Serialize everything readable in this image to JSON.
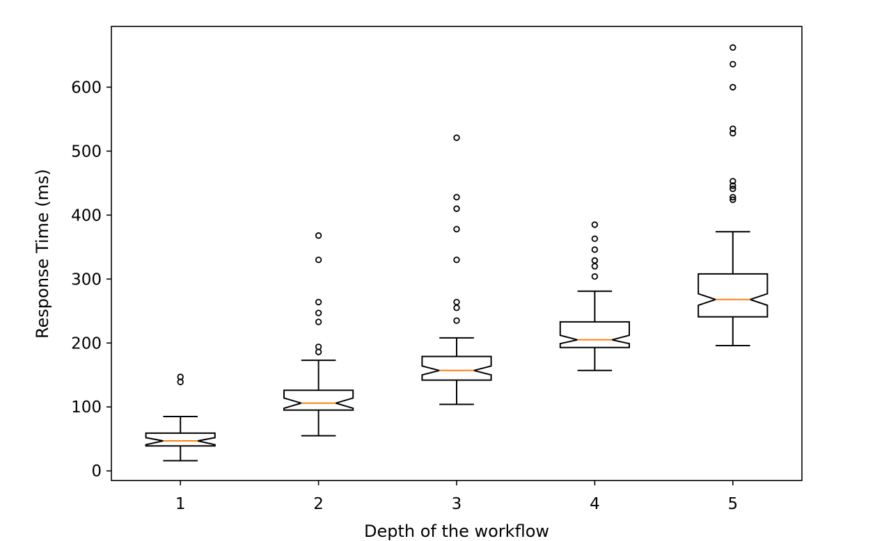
{
  "chart_data": {
    "type": "box",
    "title": "",
    "xlabel": "Depth of the workflow",
    "ylabel": "Response Time (ms)",
    "categories": [
      "1",
      "2",
      "3",
      "4",
      "5"
    ],
    "ylim": [
      -15,
      695
    ],
    "yticks": [
      0,
      100,
      200,
      300,
      400,
      500,
      600
    ],
    "notched": true,
    "grid": false,
    "boxes": [
      {
        "category": "1",
        "whisker_low": 16,
        "q1": 39,
        "median": 47,
        "q3": 59,
        "whisker_high": 85,
        "notch_low": 41,
        "notch_high": 52,
        "outliers": [
          139,
          147
        ]
      },
      {
        "category": "2",
        "whisker_low": 55,
        "q1": 95,
        "median": 106,
        "q3": 126,
        "whisker_high": 173,
        "notch_low": 98,
        "notch_high": 114,
        "outliers": [
          186,
          194,
          233,
          247,
          264,
          330,
          368
        ]
      },
      {
        "category": "3",
        "whisker_low": 104,
        "q1": 142,
        "median": 157,
        "q3": 179,
        "whisker_high": 208,
        "notch_low": 150,
        "notch_high": 164,
        "outliers": [
          235,
          255,
          264,
          330,
          378,
          410,
          428,
          521
        ]
      },
      {
        "category": "4",
        "whisker_low": 157,
        "q1": 193,
        "median": 205,
        "q3": 233,
        "whisker_high": 281,
        "notch_low": 199,
        "notch_high": 212,
        "outliers": [
          304,
          320,
          329,
          346,
          363,
          385
        ]
      },
      {
        "category": "5",
        "whisker_low": 196,
        "q1": 241,
        "median": 268,
        "q3": 308,
        "whisker_high": 374,
        "notch_low": 259,
        "notch_high": 277,
        "outliers": [
          424,
          428,
          441,
          446,
          453,
          528,
          535,
          600,
          636,
          662
        ]
      }
    ],
    "colors": {
      "box": "#000000",
      "median": "#ff7f0e",
      "axes": "#000000",
      "background": "#ffffff"
    }
  }
}
